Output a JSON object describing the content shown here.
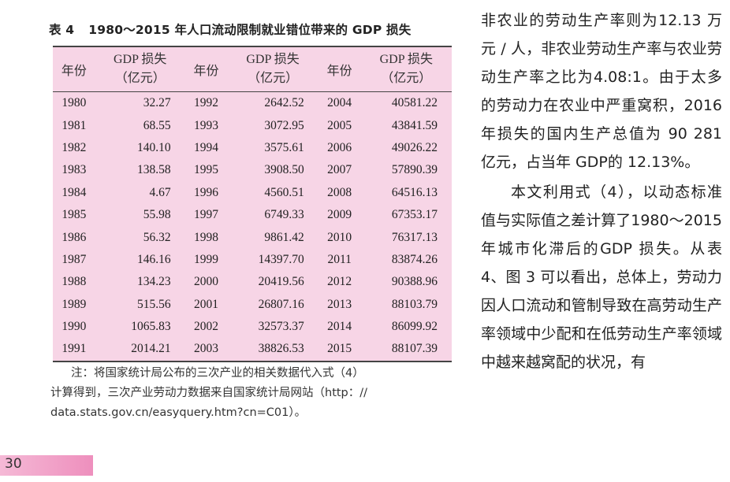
{
  "table": {
    "number": "表 4",
    "title": "1980～2015 年人口流动限制就业错位带来的 GDP 损失",
    "headers": {
      "year": "年份",
      "loss_line1": "GDP 损失",
      "loss_line2": "（亿元）"
    },
    "rows": [
      [
        [
          "1980",
          "32.27"
        ],
        [
          "1992",
          "2642.52"
        ],
        [
          "2004",
          "40581.22"
        ]
      ],
      [
        [
          "1981",
          "68.55"
        ],
        [
          "1993",
          "3072.95"
        ],
        [
          "2005",
          "43841.59"
        ]
      ],
      [
        [
          "1982",
          "140.10"
        ],
        [
          "1994",
          "3575.61"
        ],
        [
          "2006",
          "49026.22"
        ]
      ],
      [
        [
          "1983",
          "138.58"
        ],
        [
          "1995",
          "3908.50"
        ],
        [
          "2007",
          "57890.39"
        ]
      ],
      [
        [
          "1984",
          "4.67"
        ],
        [
          "1996",
          "4560.51"
        ],
        [
          "2008",
          "64516.13"
        ]
      ],
      [
        [
          "1985",
          "55.98"
        ],
        [
          "1997",
          "6749.33"
        ],
        [
          "2009",
          "67353.17"
        ]
      ],
      [
        [
          "1986",
          "56.32"
        ],
        [
          "1998",
          "9861.42"
        ],
        [
          "2010",
          "76317.13"
        ]
      ],
      [
        [
          "1987",
          "146.16"
        ],
        [
          "1999",
          "14397.70"
        ],
        [
          "2011",
          "83874.26"
        ]
      ],
      [
        [
          "1988",
          "134.23"
        ],
        [
          "2000",
          "20419.56"
        ],
        [
          "2012",
          "90388.96"
        ]
      ],
      [
        [
          "1989",
          "515.56"
        ],
        [
          "2001",
          "26807.16"
        ],
        [
          "2013",
          "88103.79"
        ]
      ],
      [
        [
          "1990",
          "1065.83"
        ],
        [
          "2002",
          "32573.37"
        ],
        [
          "2014",
          "86099.92"
        ]
      ],
      [
        [
          "1991",
          "2014.21"
        ],
        [
          "2003",
          "38826.53"
        ],
        [
          "2015",
          "88107.39"
        ]
      ]
    ]
  },
  "note": {
    "line1": "注：将国家统计局公布的三次产业的相关数据代入式（4）",
    "line2": "计算得到，三次产业劳动力数据来自国家统计局网站（http：//",
    "line3": "data.stats.gov.cn/easyquery.htm?cn=C01）。"
  },
  "body": {
    "para1": "非农业的劳动生产率则为12.13 万元 / 人，非农业劳动生产率与农业劳动生产率之比为4.08:1。由于太多的劳动力在农业中严重窝积，2016 年损失的国内生产总值为 90 281 亿元，占当年 GDP的 12.13%。",
    "para2": "本文利用式（4），以动态标准值与实际值之差计算了1980～2015 年城市化滞后的GDP 损失。从表 4、图 3 可以看出，总体上，劳动力因人口流动和管制导致在高劳动生产率领域中少配和在低劳动生产率领域中越来越窝配的状况，有"
  },
  "page_number": "30",
  "colors": {
    "table_bg": "#f7d5e6",
    "page_bar": "#ee8fbd"
  }
}
